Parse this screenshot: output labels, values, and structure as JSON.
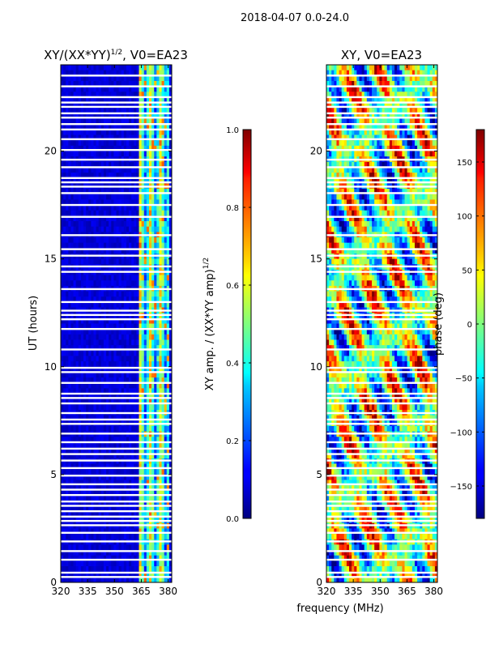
{
  "chart_data": [
    {
      "type": "heatmap",
      "id": "left",
      "suptitle": "2018-04-07 0.0-24.0",
      "title_base": "XY/(XX*YY)",
      "title_exp": "1/2",
      "title_suffix": ", V0=EA23",
      "xlabel": "",
      "ylabel": "UT (hours)",
      "xlim": [
        320,
        382
      ],
      "ylim": [
        0,
        24
      ],
      "xticks": [
        320,
        335,
        350,
        365,
        380
      ],
      "yticks": [
        0,
        5,
        10,
        15,
        20
      ],
      "colorbar": {
        "label_base": "XY amp. / (XX*YY amp)",
        "label_exp": "1/2",
        "range": [
          0.0,
          1.0
        ],
        "ticks": [
          "0.0",
          "0.2",
          "0.4",
          "0.6",
          "0.8",
          "1.0"
        ],
        "tick_values": [
          0,
          0.2,
          0.4,
          0.6,
          0.8,
          1.0
        ],
        "colormap": "jet"
      },
      "description_band_MHz": [
        363,
        380
      ]
    },
    {
      "type": "heatmap",
      "id": "right",
      "title": "XY, V0=EA23",
      "xlabel": "frequency (MHz)",
      "ylabel": "",
      "xlim": [
        320,
        382
      ],
      "ylim": [
        0,
        24
      ],
      "xticks": [
        320,
        335,
        350,
        365,
        380
      ],
      "yticks": [
        0,
        5,
        10,
        15,
        20
      ],
      "colorbar": {
        "label": "phase (deg)",
        "range": [
          -180,
          180
        ],
        "ticks": [
          "−150",
          "−100",
          "−50",
          "0",
          "50",
          "100",
          "150"
        ],
        "tick_values": [
          -150,
          -100,
          -50,
          0,
          50,
          100,
          150
        ],
        "colormap": "jet"
      }
    }
  ],
  "flagged_ut_hours": [
    0.25,
    0.45,
    1.05,
    1.45,
    1.9,
    2.3,
    2.65,
    2.85,
    3.05,
    3.3,
    3.55,
    3.75,
    4.05,
    4.3,
    4.55,
    4.95,
    5.3,
    5.65,
    5.95,
    6.2,
    6.5,
    6.9,
    7.35,
    7.55,
    7.85,
    8.3,
    8.55,
    8.75,
    9.25,
    9.75,
    9.95,
    10.8,
    11.75,
    12.2,
    12.4,
    12.6,
    13.0,
    13.6,
    14.4,
    14.65,
    15.15,
    15.45,
    16.1,
    16.95,
    17.5,
    18.05,
    18.35,
    18.55,
    18.75,
    19.25,
    19.6,
    20.05,
    20.55,
    21.0,
    21.25,
    21.55,
    21.75,
    22.05,
    22.25,
    22.5,
    23.0,
    23.5
  ]
}
